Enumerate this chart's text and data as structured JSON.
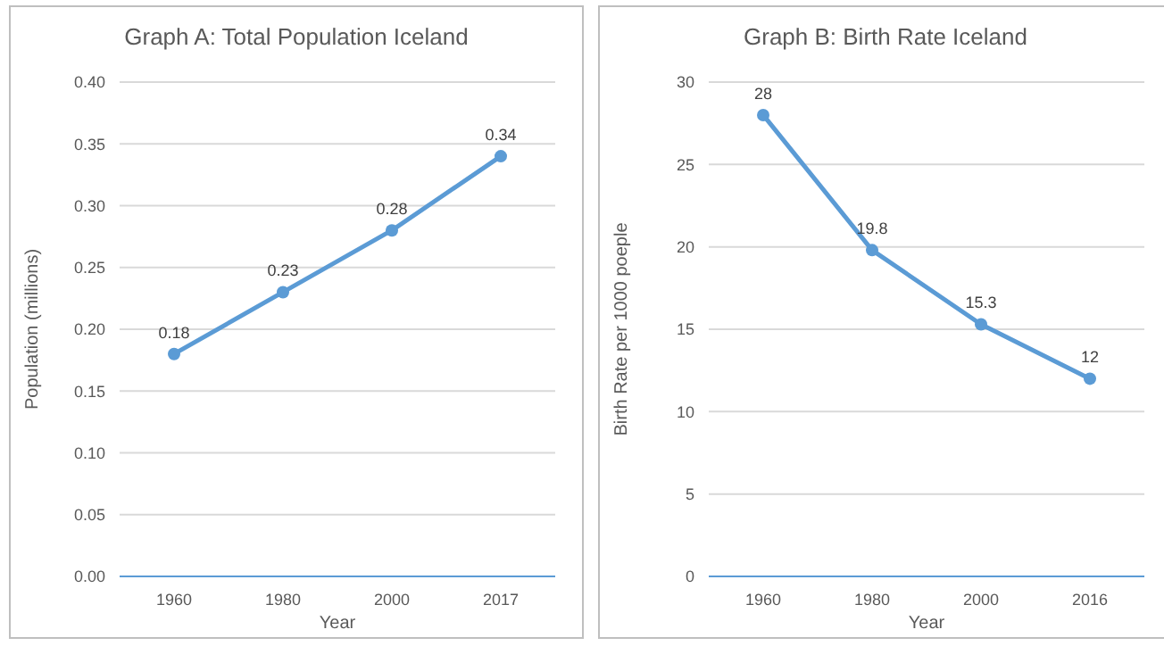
{
  "chart_data": [
    {
      "type": "line",
      "title": "Graph A: Total Population Iceland",
      "xlabel": "Year",
      "ylabel": "Population (millions)",
      "categories": [
        "1960",
        "1980",
        "2000",
        "2017"
      ],
      "series": [
        {
          "color": "#5b9bd5",
          "values": [
            0.18,
            0.23,
            0.28,
            0.34
          ]
        }
      ],
      "ylim": [
        0,
        0.4
      ],
      "yticks": [
        {
          "value": 0,
          "label": "0.00"
        },
        {
          "value": 0.05,
          "label": "0.05"
        },
        {
          "value": 0.1,
          "label": "0.10"
        },
        {
          "value": 0.15,
          "label": "0.15"
        },
        {
          "value": 0.2,
          "label": "0.20"
        },
        {
          "value": 0.25,
          "label": "0.25"
        },
        {
          "value": 0.3,
          "label": "0.30"
        },
        {
          "value": 0.35,
          "label": "0.35"
        },
        {
          "value": 0.4,
          "label": "0.40"
        }
      ],
      "grid": "y",
      "marker": "circle",
      "line_style": "solid",
      "data_labels": true
    },
    {
      "type": "line",
      "title": "Graph B: Birth Rate Iceland",
      "xlabel": "Year",
      "ylabel": "Birth Rate per 1000 poeple",
      "categories": [
        "1960",
        "1980",
        "2000",
        "2016"
      ],
      "series": [
        {
          "color": "#5b9bd5",
          "values": [
            28,
            19.8,
            15.3,
            12
          ]
        }
      ],
      "ylim": [
        0,
        30
      ],
      "yticks": [
        0,
        5,
        10,
        15,
        20,
        25,
        30
      ],
      "grid": "y",
      "marker": "circle",
      "line_style": "solid",
      "data_labels": true
    }
  ]
}
